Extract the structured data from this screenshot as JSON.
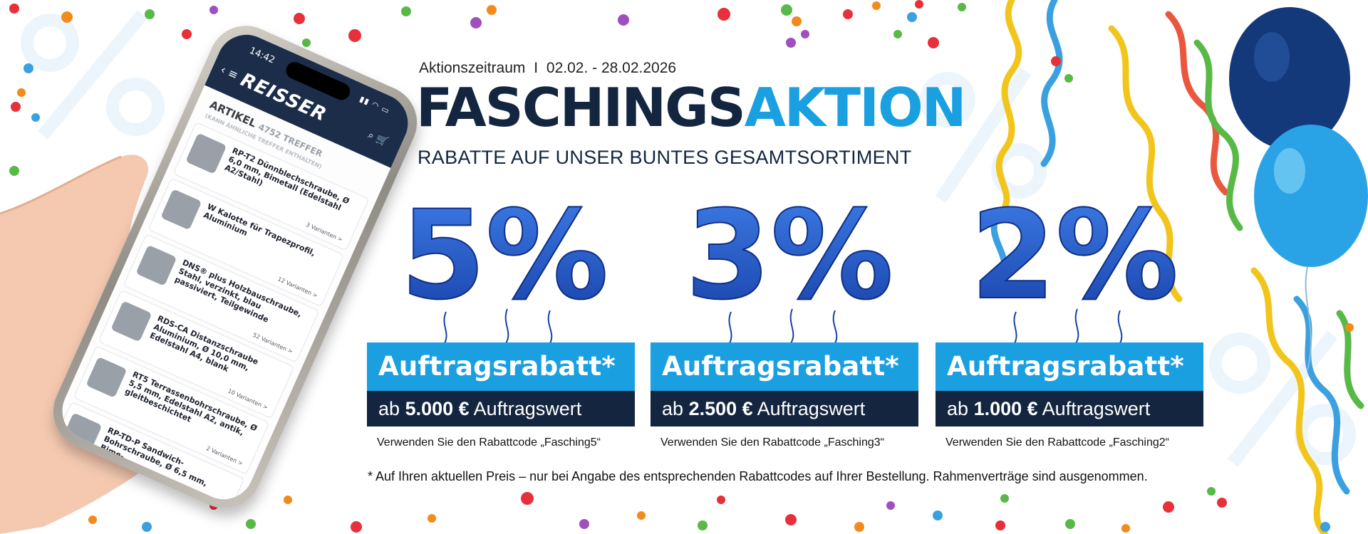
{
  "campaign": {
    "period_label": "Aktionszeitraum",
    "period_separator": "I",
    "period_dates": "02.02. - 28.02.2026",
    "headline_part1": "FASCHINGS",
    "headline_part2": "AKTION",
    "subheadline": "RABATTE AUF UNSER BUNTES GESAMTSORTIMENT",
    "footnote": "* Auf Ihren aktuellen Preis – nur bei Angabe des entsprechenden Rabattcodes auf Ihrer Bestellung. Rahmenverträge sind ausgenommen."
  },
  "offers": [
    {
      "percent": "5%",
      "label": "Auftragsrabatt*",
      "threshold_prefix": "ab",
      "threshold_value": "5.000 €",
      "threshold_suffix": "Auftragswert",
      "code_text": "Verwenden Sie den Rabattcode „Fasching5“"
    },
    {
      "percent": "3%",
      "label": "Auftragsrabatt*",
      "threshold_prefix": "ab",
      "threshold_value": "2.500 €",
      "threshold_suffix": "Auftragswert",
      "code_text": "Verwenden Sie den Rabattcode „Fasching3“"
    },
    {
      "percent": "2%",
      "label": "Auftragsrabatt*",
      "threshold_prefix": "ab",
      "threshold_value": "1.000 €",
      "threshold_suffix": "Auftragswert",
      "code_text": "Verwenden Sie den Rabattcode „Fasching2“"
    }
  ],
  "phone": {
    "time": "14:42",
    "logo": "REISSER",
    "list_title": "ARTIKEL",
    "list_count": "4752 TREFFER",
    "list_note": "(KANN ÄHNLICHE TREFFER ENTHALTEN)",
    "items": [
      {
        "name": "RP-T2 Dünnblechschraube, Ø 6,0 mm, Bimetall (Edelstahl A2/Stahl)",
        "variants": "3 Varianten >"
      },
      {
        "name": "W Kalotte für Trapezprofil, Aluminium",
        "variants": "12 Varianten >"
      },
      {
        "name": "DNS® plus Holzbauschraube, Stahl, verzinkt, blau passiviert, Teilgewinde",
        "variants": "52 Varianten >"
      },
      {
        "name": "RDS-CA Distanzschraube Aluminium, Ø 10,0 mm, Edelstahl A4, blank",
        "variants": "10 Varianten >"
      },
      {
        "name": "RT5 Terrassenbohrschraube, Ø 5,5 mm, Edelstahl A2, antik, gleitbeschichtet",
        "variants": "2 Varianten >"
      },
      {
        "name": "RP-TD-P Sandwich-Bohrschraube, Ø 6,5 mm, Bime-",
        "variants": ""
      }
    ]
  },
  "colors": {
    "navy": "#13253f",
    "accent_blue": "#1a9fe0",
    "balloon_blue": "#1f57c7"
  },
  "icons": {
    "menu": "hamburger-icon",
    "search": "search-icon",
    "cart": "cart-icon",
    "back": "chevron-left-icon"
  }
}
